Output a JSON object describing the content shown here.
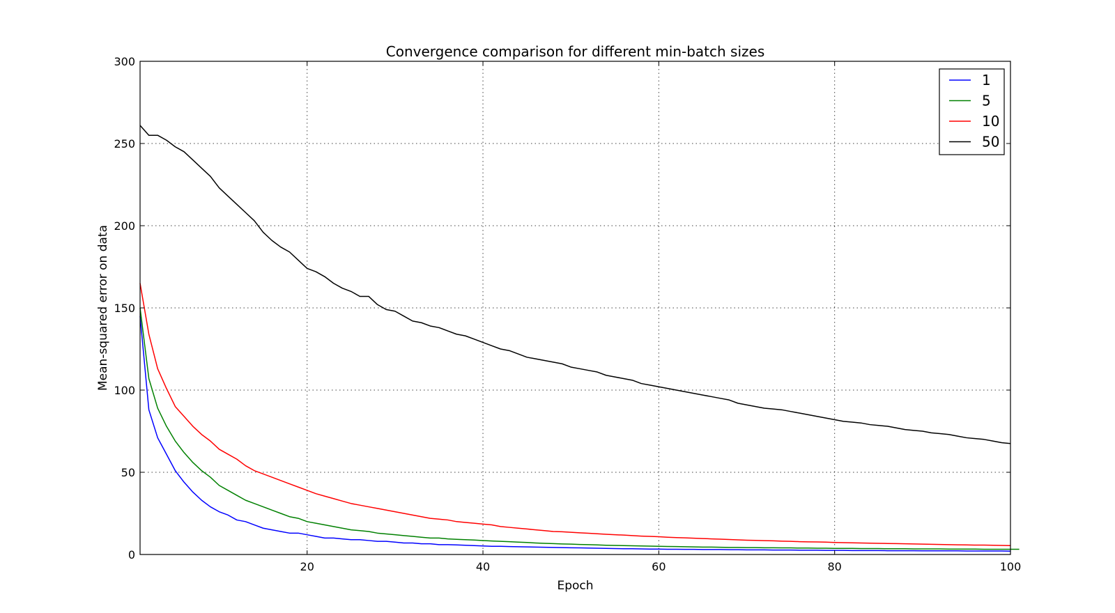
{
  "chart_data": {
    "type": "line",
    "title": "Convergence comparison for different min-batch sizes",
    "xlabel": "Epoch",
    "ylabel": "Mean-squared error on data",
    "xlim": [
      1,
      100
    ],
    "ylim": [
      0,
      300
    ],
    "xticks": [
      "20",
      "40",
      "60",
      "80",
      "100"
    ],
    "yticks": [
      "0",
      "50",
      "100",
      "150",
      "200",
      "250",
      "300"
    ],
    "grid": true,
    "legend_position": "top-right",
    "series": [
      {
        "name": "1",
        "color": "#0000ff",
        "values": [
          145,
          88,
          71,
          61,
          51,
          44,
          38,
          33,
          29,
          26,
          24,
          21,
          20,
          18,
          16,
          15,
          14,
          13,
          13,
          12,
          11,
          10,
          10,
          9.5,
          9,
          9,
          8.5,
          8,
          8,
          7.5,
          7,
          7,
          6.5,
          6.5,
          6,
          6,
          5.8,
          5.6,
          5.4,
          5.2,
          5,
          5,
          4.8,
          4.7,
          4.6,
          4.5,
          4.4,
          4.3,
          4.2,
          4.1,
          4,
          3.9,
          3.8,
          3.7,
          3.6,
          3.5,
          3.5,
          3.4,
          3.3,
          3.3,
          3.2,
          3.2,
          3.1,
          3.1,
          3,
          3,
          3,
          2.9,
          2.9,
          2.8,
          2.8,
          2.8,
          2.7,
          2.7,
          2.7,
          2.6,
          2.6,
          2.6,
          2.5,
          2.5,
          2.5,
          2.4,
          2.4,
          2.4,
          2.4,
          2.3,
          2.3,
          2.3,
          2.3,
          2.2,
          2.2,
          2.2,
          2.2,
          2.2,
          2.1,
          2.1,
          2.1,
          2.1,
          2.1,
          2
        ]
      },
      {
        "name": "5",
        "color": "#008000",
        "values": [
          150,
          107,
          89,
          78,
          69,
          62,
          56,
          51,
          47,
          42,
          39,
          36,
          33,
          31,
          29,
          27,
          25,
          23,
          22,
          20,
          19,
          18,
          17,
          16,
          15,
          14.5,
          14,
          13,
          12.5,
          12,
          11.5,
          11,
          10.5,
          10,
          10,
          9.5,
          9.2,
          9,
          8.8,
          8.5,
          8.2,
          8,
          7.8,
          7.5,
          7.3,
          7,
          6.8,
          6.6,
          6.4,
          6.3,
          6.1,
          6,
          5.8,
          5.6,
          5.5,
          5.4,
          5.3,
          5.2,
          5.1,
          5,
          4.9,
          4.8,
          4.7,
          4.6,
          4.5,
          4.5,
          4.4,
          4.3,
          4.3,
          4.2,
          4.2,
          4.1,
          4.1,
          4,
          4,
          3.9,
          3.9,
          3.8,
          3.8,
          3.7,
          3.7,
          3.7,
          3.6,
          3.6,
          3.6,
          3.5,
          3.5,
          3.5,
          3.4,
          3.4,
          3.4,
          3.4,
          3.3,
          3.3,
          3.3,
          3.3,
          3.2,
          3.2,
          3.2,
          3.2,
          3.2
        ]
      },
      {
        "name": "10",
        "color": "#ff0000",
        "values": [
          165,
          134,
          113,
          101,
          90,
          84,
          78,
          73,
          69,
          64,
          61,
          58,
          54,
          51,
          49,
          47,
          45,
          43,
          41,
          39,
          37,
          35.5,
          34,
          32.5,
          31,
          30,
          29,
          28,
          27,
          26,
          25,
          24,
          23,
          22,
          21.5,
          21,
          20,
          19.5,
          19,
          18.5,
          18,
          17,
          16.5,
          16,
          15.5,
          15,
          14.5,
          14,
          13.8,
          13.5,
          13.2,
          12.9,
          12.6,
          12.3,
          12,
          11.8,
          11.5,
          11.2,
          11,
          10.8,
          10.5,
          10.3,
          10.1,
          9.9,
          9.7,
          9.5,
          9.3,
          9.1,
          8.9,
          8.7,
          8.6,
          8.4,
          8.3,
          8.1,
          8,
          7.8,
          7.7,
          7.6,
          7.5,
          7.3,
          7.2,
          7.1,
          7,
          6.9,
          6.8,
          6.7,
          6.6,
          6.5,
          6.4,
          6.3,
          6.2,
          6.1,
          6,
          5.9,
          5.8,
          5.7,
          5.7,
          5.6,
          5.5,
          5.4
        ]
      },
      {
        "name": "50",
        "color": "#000000",
        "values": [
          261,
          255,
          255,
          252,
          248,
          245,
          240,
          235,
          230,
          223,
          218,
          213,
          208,
          203,
          196,
          191,
          187,
          184,
          179,
          174,
          172,
          169,
          165,
          162,
          160,
          157,
          157,
          152,
          149,
          148,
          145,
          142,
          141,
          139,
          138,
          136,
          134,
          133,
          131,
          129,
          127,
          125,
          124,
          122,
          120,
          119,
          118,
          117,
          116,
          114,
          113,
          112,
          111,
          109,
          108,
          107,
          106,
          104,
          103,
          102,
          101,
          100,
          99,
          98,
          97,
          96,
          95,
          94,
          92,
          91,
          90,
          89,
          88.5,
          88,
          87,
          86,
          85,
          84,
          83,
          82,
          81,
          80.5,
          80,
          79,
          78.5,
          78,
          77,
          76,
          75.5,
          75,
          74,
          73.5,
          73,
          72,
          71,
          70.5,
          70,
          69,
          68,
          67.5
        ]
      }
    ]
  }
}
